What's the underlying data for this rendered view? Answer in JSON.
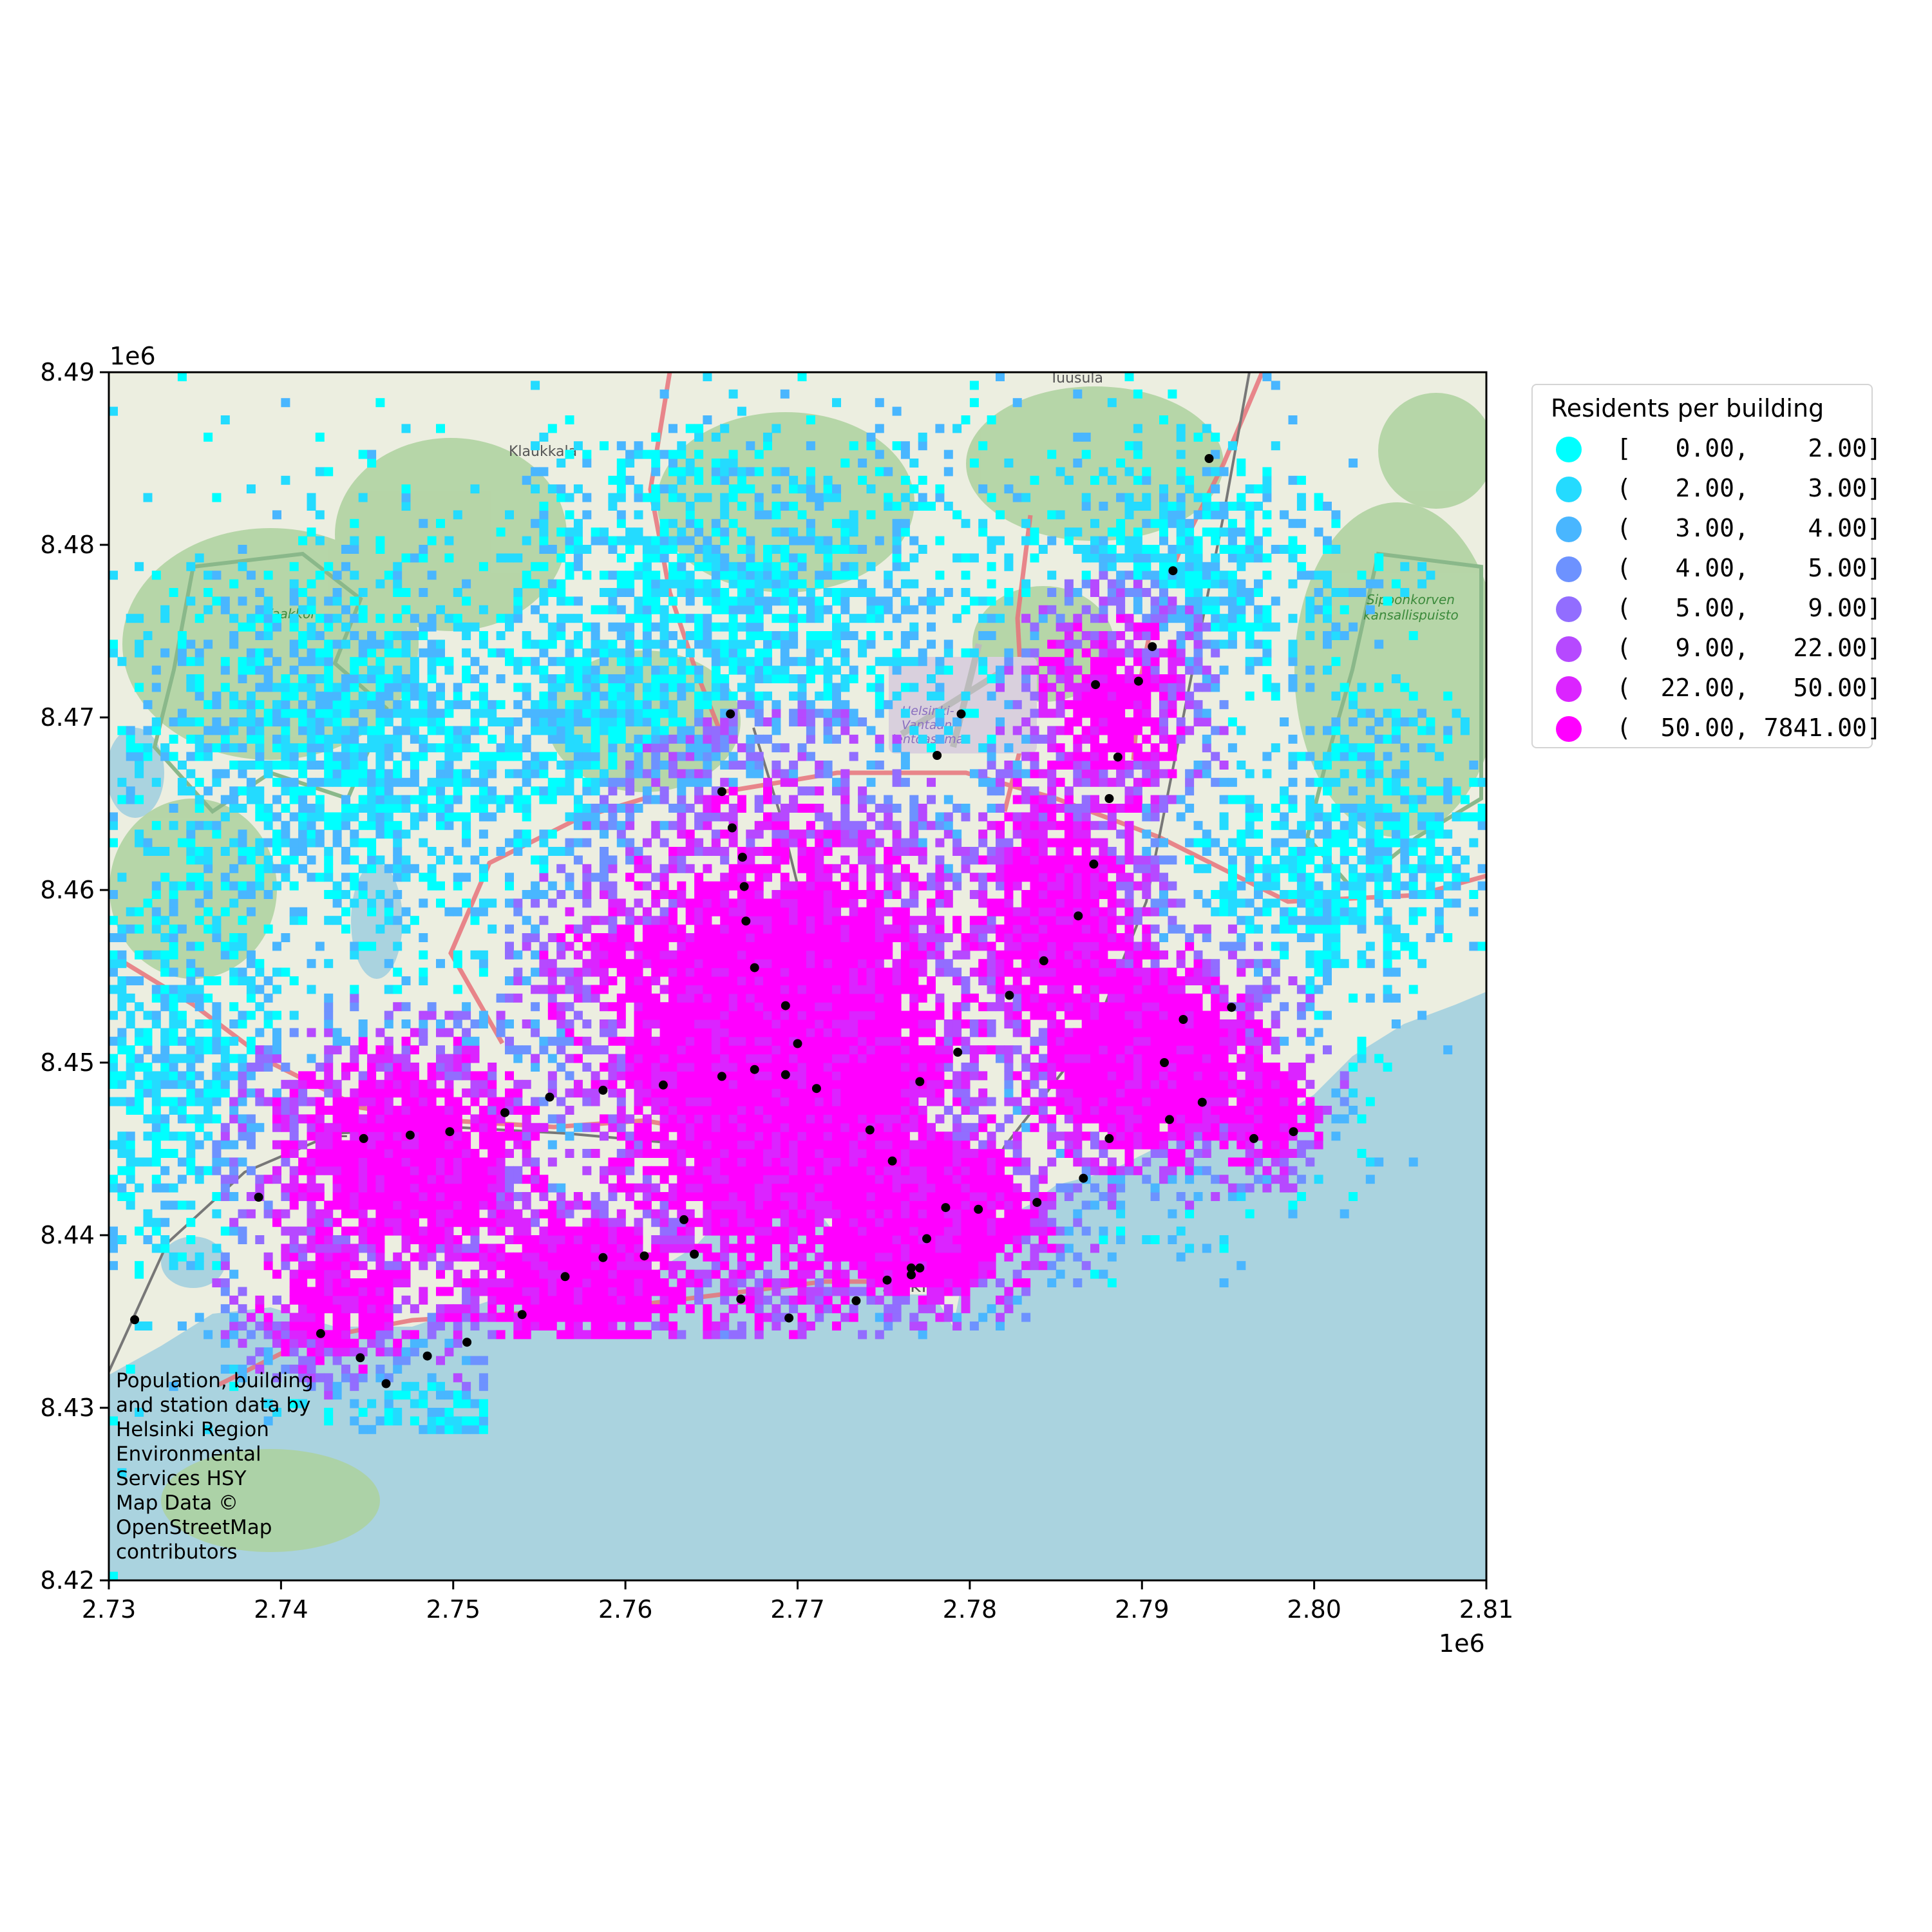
{
  "chart_data": {
    "type": "choropleth-grid-map",
    "x_axis": {
      "range": [
        2.73,
        2.81
      ],
      "ticks": [
        "2.73",
        "2.74",
        "2.75",
        "2.76",
        "2.77",
        "2.78",
        "2.79",
        "2.80",
        "2.81"
      ],
      "offset": "1e6"
    },
    "y_axis": {
      "range": [
        8.42,
        8.49
      ],
      "ticks": [
        "8.42",
        "8.43",
        "8.44",
        "8.45",
        "8.46",
        "8.47",
        "8.48",
        "8.49"
      ],
      "offset": "1e6"
    },
    "legend": {
      "title": "Residents per building",
      "placement": "outside-right-top",
      "classes": [
        {
          "label": "[   0.00,    2.00]",
          "color": "#00ffff"
        },
        {
          "label": "(   2.00,    3.00]",
          "color": "#24dbff"
        },
        {
          "label": "(   3.00,    4.00]",
          "color": "#49b6ff"
        },
        {
          "label": "(   4.00,    5.00]",
          "color": "#6d92ff"
        },
        {
          "label": "(   5.00,    9.00]",
          "color": "#926dff"
        },
        {
          "label": "(   9.00,   22.00]",
          "color": "#b649ff"
        },
        {
          "label": "(  22.00,   50.00]",
          "color": "#db24ff"
        },
        {
          "label": "(  50.00, 7841.00]",
          "color": "#ff00ff"
        }
      ]
    },
    "stations": [
      [
        2.7315,
        8.4351
      ],
      [
        2.7387,
        8.4422
      ],
      [
        2.7423,
        8.4343
      ],
      [
        2.7446,
        8.4329
      ],
      [
        2.7461,
        8.4314
      ],
      [
        2.7448,
        8.4456
      ],
      [
        2.7475,
        8.4458
      ],
      [
        2.7498,
        8.446
      ],
      [
        2.7485,
        8.433
      ],
      [
        2.7508,
        8.4338
      ],
      [
        2.753,
        8.4471
      ],
      [
        2.754,
        8.4354
      ],
      [
        2.7556,
        8.448
      ],
      [
        2.7565,
        8.4376
      ],
      [
        2.7587,
        8.4484
      ],
      [
        2.7587,
        8.4387
      ],
      [
        2.7611,
        8.4388
      ],
      [
        2.7622,
        8.4487
      ],
      [
        2.7634,
        8.4409
      ],
      [
        2.764,
        8.4389
      ],
      [
        2.7656,
        8.4492
      ],
      [
        2.7656,
        8.4657
      ],
      [
        2.7661,
        8.4702
      ],
      [
        2.7662,
        8.4636
      ],
      [
        2.7668,
        8.4619
      ],
      [
        2.7669,
        8.4602
      ],
      [
        2.767,
        8.4582
      ],
      [
        2.7667,
        8.4363
      ],
      [
        2.7675,
        8.4555
      ],
      [
        2.7675,
        8.4496
      ],
      [
        2.7693,
        8.4533
      ],
      [
        2.7693,
        8.4493
      ],
      [
        2.7695,
        8.4352
      ],
      [
        2.77,
        8.4511
      ],
      [
        2.7711,
        8.4485
      ],
      [
        2.7734,
        8.4362
      ],
      [
        2.7742,
        8.4461
      ],
      [
        2.7752,
        8.4374
      ],
      [
        2.7755,
        8.4443
      ],
      [
        2.7766,
        8.4381
      ],
      [
        2.7766,
        8.4377
      ],
      [
        2.7771,
        8.4381
      ],
      [
        2.7771,
        8.4489
      ],
      [
        2.7775,
        8.4398
      ],
      [
        2.7781,
        8.4678
      ],
      [
        2.7786,
        8.4416
      ],
      [
        2.7793,
        8.4506
      ],
      [
        2.7795,
        8.4702
      ],
      [
        2.7805,
        8.4415
      ],
      [
        2.7823,
        8.4539
      ],
      [
        2.7839,
        8.4419
      ],
      [
        2.7843,
        8.4559
      ],
      [
        2.7863,
        8.4585
      ],
      [
        2.7866,
        8.4433
      ],
      [
        2.7872,
        8.4615
      ],
      [
        2.7873,
        8.4719
      ],
      [
        2.7881,
        8.4456
      ],
      [
        2.7881,
        8.4653
      ],
      [
        2.7886,
        8.4677
      ],
      [
        2.7898,
        8.4721
      ],
      [
        2.7906,
        8.4741
      ],
      [
        2.7913,
        8.45
      ],
      [
        2.7916,
        8.4467
      ],
      [
        2.7918,
        8.4785
      ],
      [
        2.7924,
        8.4525
      ],
      [
        2.7935,
        8.4477
      ],
      [
        2.7939,
        8.485
      ],
      [
        2.7952,
        8.4532
      ],
      [
        2.7965,
        8.4456
      ],
      [
        2.7988,
        8.446
      ]
    ]
  },
  "attribution": "Population, building\nand station data by\nHelsinki Region\nEnvironmental\nServices HSY\nMap Data ©\nOpenStreetMap\ncontributors",
  "basemap_labels": {
    "klaukkala": "Klaukkala",
    "tuusula": "Tuusula",
    "vaakkoi": "Vaakkoi",
    "airport": "Helsinki-\nVantaan\nlentoasema",
    "sipoonkorpi": "Sipoonkorven\nkansallispuisto",
    "espoo": "Es",
    "helsinki": "sinki"
  }
}
